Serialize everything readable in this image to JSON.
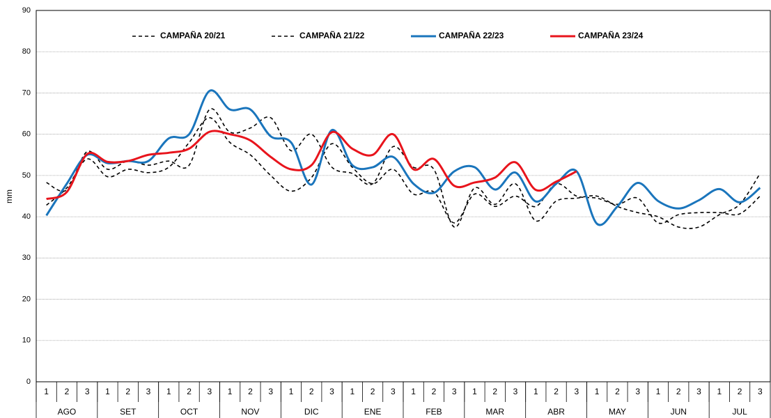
{
  "chart_data": {
    "type": "line",
    "y_label": "mm",
    "ylim": [
      0,
      90
    ],
    "yticks": [
      0,
      10,
      20,
      30,
      40,
      50,
      60,
      70,
      80,
      90
    ],
    "grid": true,
    "categories": [
      "1",
      "2",
      "3",
      "1",
      "2",
      "3",
      "1",
      "2",
      "3",
      "1",
      "2",
      "3",
      "1",
      "2",
      "3",
      "1",
      "2",
      "3",
      "1",
      "2",
      "3",
      "1",
      "2",
      "3",
      "1",
      "2",
      "3",
      "1",
      "2",
      "3",
      "1",
      "2",
      "3",
      "1",
      "2",
      "3"
    ],
    "groups": [
      "AGO",
      "SET",
      "OCT",
      "NOV",
      "DIC",
      "ENE",
      "FEB",
      "MAR",
      "ABR",
      "MAY",
      "JUN",
      "JUL"
    ],
    "legend": "top",
    "series": [
      {
        "name": "CAMPAÑA 20/21",
        "color": "#000000",
        "line_style": "dashed",
        "values": [
          48.3,
          46.5,
          55.8,
          51.5,
          53.5,
          52.5,
          53.5,
          52.5,
          66,
          60.5,
          61.5,
          64,
          56,
          60,
          52,
          50.5,
          48,
          57,
          52,
          51.5,
          37.5,
          47,
          43,
          48,
          39,
          43.8,
          44.5,
          45,
          42.5,
          41,
          40,
          37.5,
          37.5,
          40.5,
          43,
          50.5
        ]
      },
      {
        "name": "CAMPAÑA 21/22",
        "color": "#000000",
        "line_style": "dashed",
        "values": [
          42.8,
          47,
          54,
          49.7,
          51.5,
          50.7,
          52,
          58,
          64,
          58,
          55,
          50,
          46.2,
          49.5,
          57.7,
          52,
          48,
          51.5,
          45.5,
          46,
          38.5,
          45.5,
          42.5,
          45,
          42.5,
          48,
          45,
          44.5,
          43,
          44.5,
          38.5,
          40.5,
          41,
          41,
          40.7,
          45
        ]
      },
      {
        "name": "CAMPAÑA 22/23",
        "color": "#1a75bc",
        "line_style": "solid",
        "values": [
          40.3,
          48,
          55,
          53,
          53.5,
          53.5,
          59,
          60,
          70.5,
          66,
          66,
          59.5,
          58,
          47.8,
          61,
          52.5,
          52,
          54.5,
          48,
          45.8,
          51,
          52,
          46.6,
          50.7,
          43.7,
          48,
          51,
          38.3,
          42.5,
          48.2,
          43.8,
          42,
          44,
          46.7,
          43.5,
          47
        ]
      },
      {
        "name": "CAMPAÑA 23/24",
        "color": "#e8141c",
        "line_style": "solid",
        "values": [
          44.3,
          46,
          55.2,
          53.3,
          53.5,
          55,
          55.5,
          56.5,
          60.6,
          60,
          58.5,
          54.5,
          51.5,
          52.5,
          60.5,
          56.5,
          55,
          60,
          51.5,
          54,
          47.5,
          48.3,
          49.5,
          53.2,
          46.5,
          48.5,
          51,
          null,
          null,
          null,
          null,
          null,
          null,
          null,
          null,
          null
        ]
      }
    ]
  }
}
